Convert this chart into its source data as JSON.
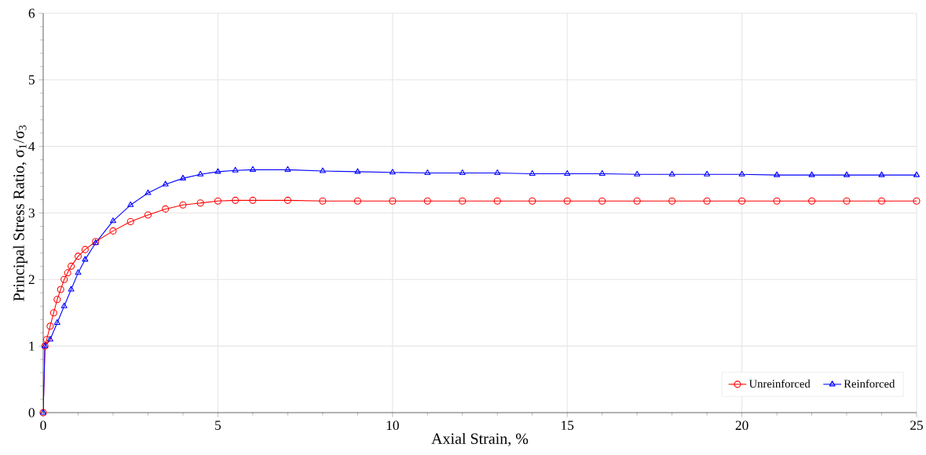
{
  "chart_data": {
    "type": "line",
    "xlabel": "Axial Strain, %",
    "ylabel": "Principal Stress Ratio, σ$_{1}$/σ$_{3}$",
    "xlim": [
      0,
      25
    ],
    "ylim": [
      0,
      6
    ],
    "xticks": [
      0,
      5,
      10,
      15,
      20,
      25
    ],
    "yticks": [
      0,
      1,
      2,
      3,
      4,
      5,
      6
    ],
    "grid": true,
    "legend": "bottom right",
    "series": [
      {
        "name": "Unreinforced",
        "color": "#ff0000",
        "marker": "circle",
        "x": [
          0,
          0.05,
          0.1,
          0.2,
          0.3,
          0.4,
          0.5,
          0.6,
          0.7,
          0.8,
          1.0,
          1.2,
          1.5,
          2,
          2.5,
          3,
          3.5,
          4,
          4.5,
          5,
          5.5,
          6,
          7,
          8,
          9,
          10,
          11,
          12,
          13,
          14,
          15,
          16,
          17,
          18,
          19,
          20,
          21,
          22,
          23,
          24,
          25
        ],
        "values": [
          0,
          1.0,
          1.1,
          1.3,
          1.5,
          1.7,
          1.85,
          2.0,
          2.1,
          2.2,
          2.35,
          2.45,
          2.57,
          2.73,
          2.87,
          2.97,
          3.06,
          3.12,
          3.15,
          3.18,
          3.19,
          3.19,
          3.19,
          3.18,
          3.18,
          3.18,
          3.18,
          3.18,
          3.18,
          3.18,
          3.18,
          3.18,
          3.18,
          3.18,
          3.18,
          3.18,
          3.18,
          3.18,
          3.18,
          3.18,
          3.18
        ]
      },
      {
        "name": "Reinforced",
        "color": "#0000ff",
        "marker": "triangle",
        "x": [
          0,
          0.05,
          0.2,
          0.4,
          0.6,
          0.8,
          1.0,
          1.2,
          1.5,
          2,
          2.5,
          3,
          3.5,
          4,
          4.5,
          5,
          5.5,
          6,
          7,
          8,
          9,
          10,
          11,
          12,
          13,
          14,
          15,
          16,
          17,
          18,
          19,
          20,
          21,
          22,
          23,
          24,
          25
        ],
        "values": [
          0,
          1.0,
          1.1,
          1.35,
          1.6,
          1.85,
          2.1,
          2.3,
          2.55,
          2.88,
          3.12,
          3.3,
          3.43,
          3.52,
          3.58,
          3.62,
          3.64,
          3.65,
          3.65,
          3.63,
          3.62,
          3.61,
          3.6,
          3.6,
          3.6,
          3.59,
          3.59,
          3.59,
          3.58,
          3.58,
          3.58,
          3.58,
          3.57,
          3.57,
          3.57,
          3.57,
          3.57
        ]
      }
    ]
  }
}
